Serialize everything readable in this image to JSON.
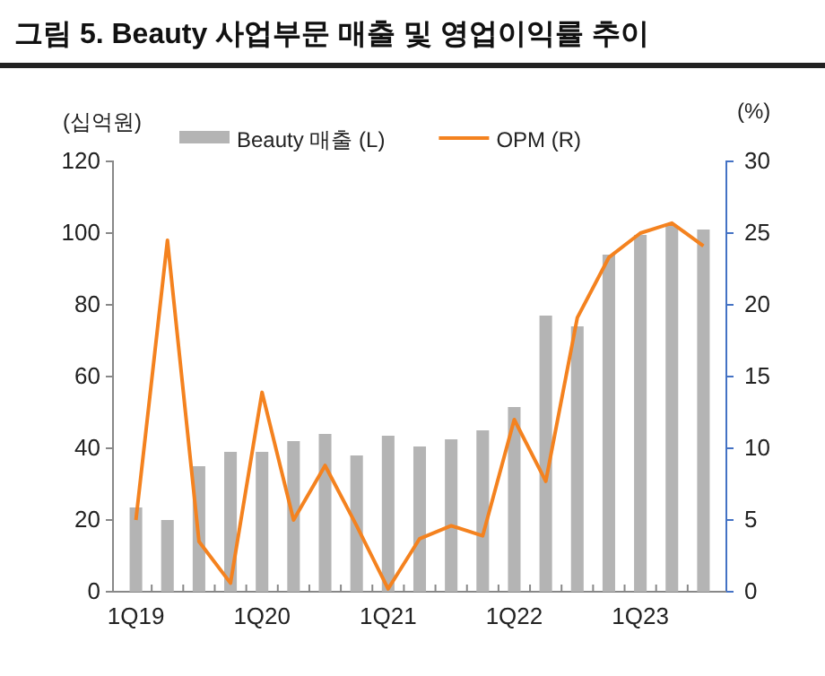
{
  "chart_data": {
    "type": "bar",
    "title": "그림 5. Beauty 사업부문 매출 및 영업이익률 추이",
    "ylabel": "(십억원)",
    "y2label": "(%)",
    "categories": [
      "1Q19",
      null,
      null,
      null,
      "1Q20",
      null,
      null,
      null,
      "1Q21",
      null,
      null,
      null,
      "1Q22",
      null,
      null,
      null,
      "1Q23",
      null,
      null
    ],
    "series": [
      {
        "name": "Beauty 매출 (L)",
        "color": "#b4b4b4",
        "values": [
          23.5,
          20,
          35,
          39,
          39,
          42,
          44,
          38,
          43.5,
          40.5,
          42.5,
          45,
          51.5,
          77,
          74,
          94,
          99.5,
          102,
          101
        ]
      },
      {
        "name": "OPM (R)",
        "type": "line",
        "axis": "y2",
        "color": "#f4821f",
        "values": [
          5,
          24.5,
          3.5,
          0.6,
          13.9,
          5,
          8.8,
          4.6,
          0.2,
          3.7,
          4.6,
          3.9,
          12,
          7.7,
          19.1,
          23.3,
          25,
          25.7,
          24.1
        ]
      }
    ],
    "ylim": [
      0,
      120
    ],
    "yticks": [
      0,
      20,
      40,
      60,
      80,
      100,
      120
    ],
    "y2lim": [
      0,
      30
    ],
    "y2ticks": [
      0,
      5,
      10,
      15,
      20,
      25,
      30
    ],
    "grid": false,
    "legend": "top",
    "marker": "none",
    "line_style": "solid"
  }
}
